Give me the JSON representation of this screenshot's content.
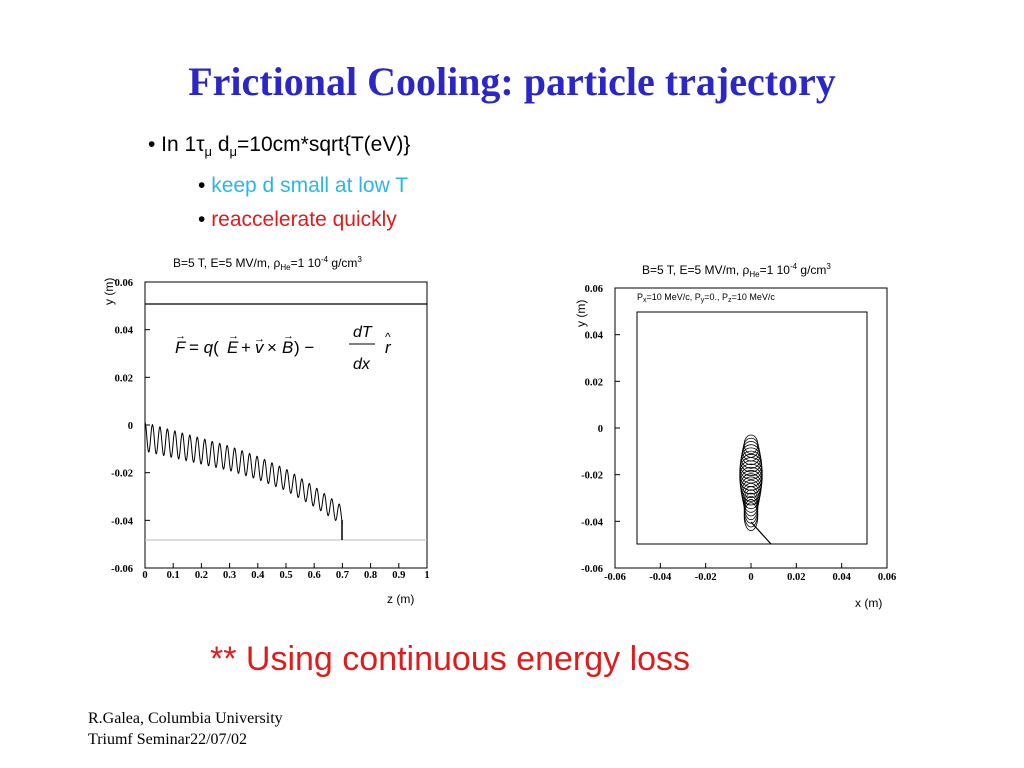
{
  "slide": {
    "title": "Frictional Cooling: particle trajectory",
    "bullet1_prefix": "• In 1",
    "bullet1_tau": "τ",
    "bullet1_mu1": "μ",
    "bullet1_d": " d",
    "bullet1_mu2": "μ",
    "bullet1_rest": "=10cm*sqrt{T(eV)}",
    "sub1": "keep d small at low T",
    "sub2": "reaccelerate quickly",
    "bullet_mark": "• ",
    "note": "** Using continuous energy loss",
    "footer_line1": "R.Galea, Columbia University",
    "footer_line2": "Triumf Seminar22/07/02",
    "colors": {
      "title": "#2a26c8",
      "cyan": "#2bb6e8",
      "red": "#e01b1b"
    }
  },
  "chart_data": [
    {
      "type": "line",
      "title": "B=5 T, E=5 MV/m, ρHe=1 10⁻⁴ g/cm³",
      "xlabel": "z (m)",
      "ylabel": "y (m)",
      "xlim": [
        0,
        1
      ],
      "ylim": [
        -0.06,
        0.06
      ],
      "xticks": [
        "0",
        "0.1",
        "0.2",
        "0.3",
        "0.4",
        "0.5",
        "0.6",
        "0.7",
        "0.8",
        "0.9",
        "1"
      ],
      "yticks": [
        "-0.06",
        "-0.04",
        "-0.02",
        "0",
        "0.02",
        "0.04",
        "0.06"
      ],
      "annotation": "F = q(E + v × B) − (dT/dx) r̂",
      "series": [
        {
          "x": [
            0.0,
            0.1,
            0.2,
            0.3,
            0.4,
            0.5,
            0.6,
            0.7
          ],
          "y_center": [
            -0.005,
            -0.008,
            -0.011,
            -0.014,
            -0.018,
            -0.023,
            -0.03,
            -0.038
          ],
          "amplitude": 0.006
        }
      ],
      "drop": {
        "x": 0.7,
        "y_from": -0.041,
        "y_to": -0.05
      },
      "reference_lines_y": [
        0.05,
        -0.05
      ]
    },
    {
      "type": "line",
      "title": "B=5 T, E=5 MV/m, ρHe=1 10⁻⁴ g/cm³",
      "subtitle": "Pₓ=10 MeV/c, Pᵧ=0., P_z=10 MeV/c",
      "xlabel": "x (m)",
      "ylabel": "y (m)",
      "xlim": [
        -0.06,
        0.06
      ],
      "ylim": [
        -0.06,
        0.06
      ],
      "xticks": [
        "-0.06",
        "-0.04",
        "-0.02",
        "0",
        "0.02",
        "0.04",
        "0.06"
      ],
      "yticks": [
        "-0.06",
        "-0.04",
        "-0.02",
        "0",
        "0.02",
        "0.04",
        "0.06"
      ],
      "loops": {
        "x_center": 0,
        "y_top": -0.003,
        "y_bottom": -0.04,
        "rx_max": 0.005,
        "count": 22
      },
      "tail": {
        "from": [
          0.0,
          -0.041
        ],
        "to": [
          0.008,
          -0.05
        ]
      },
      "inner_box": {
        "x": [
          -0.05,
          0.05
        ],
        "y": [
          -0.05,
          0.05
        ]
      }
    }
  ]
}
